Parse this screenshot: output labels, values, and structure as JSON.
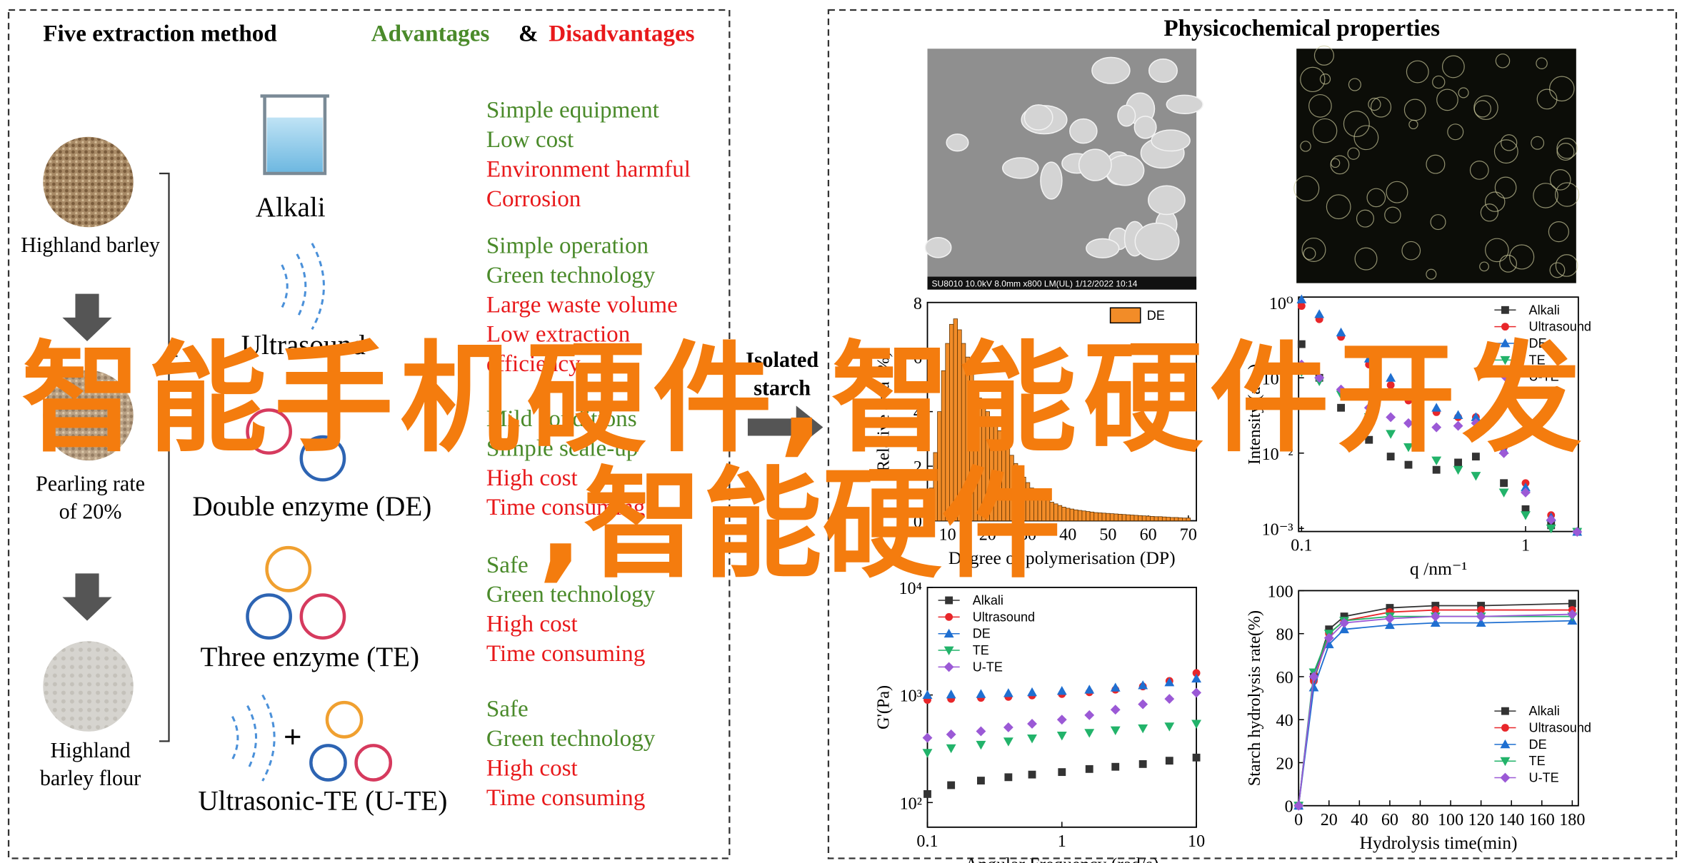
{
  "left_panel": {
    "title": "Five extraction method",
    "advantages": "Advantages",
    "ampersand": "&",
    "disadvantages": "Disadvantages",
    "steps": [
      [
        "Highland barley"
      ],
      [
        "Pearling rate",
        "of 20%"
      ],
      [
        "Highland",
        "barley flour"
      ]
    ],
    "methods": [
      {
        "name": "Alkali",
        "pros": [
          "Simple equipment",
          "Low cost"
        ],
        "cons": [
          "Environment harmful",
          "Corrosion"
        ]
      },
      {
        "name": "Ultrasound",
        "pros": [
          "Simple operation",
          "Green technology"
        ],
        "cons": [
          "Large waste volume",
          "Low extraction",
          "efficiency"
        ]
      },
      {
        "name": "Double enzyme (DE)",
        "pros": [
          "Mild conditions",
          "Simple scale-up"
        ],
        "cons": [
          "High cost",
          "Time consuming"
        ]
      },
      {
        "name": "Three enzyme (TE)",
        "pros": [
          "Safe",
          "Green technology"
        ],
        "cons": [
          "High cost",
          "Time consuming"
        ]
      },
      {
        "name": "Ultrasonic-TE (U-TE)",
        "pros": [
          "Safe",
          "Green technology"
        ],
        "cons": [
          "High cost",
          "Time consuming"
        ]
      }
    ]
  },
  "right_panel": {
    "title": "Physicochemical properties",
    "isolated_starch": [
      "Isolated",
      "starch"
    ],
    "sem_caption": "SU8010 10.0kV 8.0mm x800 LM(UL) 1/12/2022 10:14",
    "charts": [
      {
        "type": "histogram",
        "xlabel": "Degree of polymerisation (DP)",
        "ylabel": "Relative area (%)",
        "xlim": [
          5,
          72
        ],
        "ylim": [
          0,
          8
        ],
        "xticks": [
          10,
          20,
          30,
          40,
          50,
          60,
          70
        ],
        "yticks": [
          0,
          2,
          4,
          6,
          8
        ],
        "legend": "top-right",
        "bins": [
          5.5,
          6.5,
          7.5,
          8.5,
          9.5,
          10.5,
          11.5,
          12.5,
          13.5,
          14.5,
          15.5,
          16.5,
          17.5,
          18.5,
          19.5,
          20.5,
          21.5,
          22.5,
          23.5,
          24.5,
          25.5,
          26.5,
          27.5,
          28.5,
          29.5,
          30.5,
          31.5,
          32.5,
          33.5,
          34.5,
          35.5,
          36.5,
          37.5,
          38.5,
          39.5,
          40.5,
          41.5,
          42.5,
          43.5,
          44.5,
          45.5,
          46.5,
          47.5,
          48.5,
          49.5,
          50.5,
          51.5,
          52.5,
          53.5,
          54.5,
          55.5,
          56.5,
          57.5,
          58.5,
          59.5,
          60.5,
          61.5,
          62.5,
          63.5,
          64.5,
          65.5,
          66.5,
          67.5,
          68.5,
          69.5,
          70.5
        ],
        "series": [
          {
            "name": "DE",
            "color": "#f28c28",
            "values": [
              1.2,
              2.5,
              4.0,
              5.5,
              6.5,
              7.2,
              7.4,
              7.0,
              6.5,
              6.0,
              5.5,
              5.0,
              4.5,
              4.2,
              4.0,
              3.8,
              3.6,
              3.3,
              3.0,
              2.7,
              2.4,
              2.1,
              1.8,
              1.6,
              1.4,
              1.2,
              1.05,
              0.95,
              0.85,
              0.75,
              0.68,
              0.62,
              0.56,
              0.5,
              0.46,
              0.43,
              0.4,
              0.38,
              0.36,
              0.34,
              0.32,
              0.3,
              0.29,
              0.28,
              0.27,
              0.26,
              0.25,
              0.24,
              0.23,
              0.22,
              0.21,
              0.2,
              0.19,
              0.18,
              0.17,
              0.16,
              0.15,
              0.15,
              0.14,
              0.13,
              0.12,
              0.12,
              0.11,
              0.1,
              0.1
            ]
          }
        ]
      },
      {
        "type": "scatter",
        "xlog": true,
        "ylog": true,
        "xlabel": "q /nm⁻¹",
        "ylabel": "Intensity (a.u.)",
        "xlim": [
          0.097,
          1.72
        ],
        "ylim": [
          0.00091,
          1.18
        ],
        "xticks": [
          0.1,
          1
        ],
        "yticks": [
          {
            "value": 0.001,
            "label": "10⁻³"
          },
          {
            "value": 0.01,
            "label": "10⁻²"
          },
          {
            "value": 0.1,
            "label": "10⁻¹"
          },
          {
            "value": 1,
            "label": "10⁰"
          }
        ],
        "legend": "top-right",
        "x": [
          0.1,
          0.12,
          0.15,
          0.2,
          0.25,
          0.3,
          0.4,
          0.5,
          0.6,
          0.8,
          1.0,
          1.3,
          1.7
        ],
        "series": [
          {
            "name": "Alkali",
            "color": "#333333",
            "marker": "square",
            "values": [
              0.28,
              0.1,
              0.04,
              0.015,
              0.009,
              0.007,
              0.006,
              0.0075,
              0.009,
              0.004,
              0.0018,
              0.0011,
              0.0009
            ]
          },
          {
            "name": "Ultrasound",
            "color": "#e8262a",
            "marker": "circle",
            "values": [
              0.9,
              0.6,
              0.35,
              0.15,
              0.08,
              0.05,
              0.035,
              0.03,
              0.03,
              0.012,
              0.004,
              0.0015,
              0.0009
            ]
          },
          {
            "name": "DE",
            "color": "#1f6fd1",
            "marker": "up",
            "values": [
              1.1,
              0.7,
              0.4,
              0.18,
              0.1,
              0.06,
              0.04,
              0.032,
              0.03,
              0.011,
              0.0035,
              0.0014,
              0.0009
            ]
          },
          {
            "name": "TE",
            "color": "#22b36a",
            "marker": "down",
            "values": [
              0.12,
              0.09,
              0.06,
              0.03,
              0.018,
              0.012,
              0.008,
              0.006,
              0.005,
              0.003,
              0.0015,
              0.001,
              0.0009
            ]
          },
          {
            "name": "U-TE",
            "color": "#9b59d6",
            "marker": "diamond",
            "values": [
              0.15,
              0.1,
              0.07,
              0.04,
              0.03,
              0.025,
              0.022,
              0.023,
              0.025,
              0.01,
              0.003,
              0.0013,
              0.0009
            ]
          }
        ]
      },
      {
        "type": "scatter",
        "xlog": true,
        "ylog": true,
        "xlabel": "Angular Frequency (rad/s)",
        "ylabel": "G'(Pa)",
        "xlim": [
          0.1,
          10
        ],
        "ylim": [
          59,
          10000
        ],
        "xticks": [
          0.1,
          1,
          10
        ],
        "yticks": [
          {
            "value": 100,
            "label": "10²"
          },
          {
            "value": 1000,
            "label": "10³"
          },
          {
            "value": 10000,
            "label": "10⁴"
          }
        ],
        "legend": "top-left",
        "x": [
          0.1,
          0.15,
          0.25,
          0.4,
          0.6,
          1,
          1.6,
          2.5,
          4,
          6.3,
          10
        ],
        "series": [
          {
            "name": "Alkali",
            "color": "#333333",
            "marker": "square",
            "values": [
              120,
              145,
              160,
              172,
              182,
              192,
              205,
              215,
              228,
              245,
              262
            ]
          },
          {
            "name": "Ultrasound",
            "color": "#e8262a",
            "marker": "circle",
            "values": [
              900,
              920,
              940,
              960,
              990,
              1020,
              1060,
              1120,
              1200,
              1350,
              1600
            ]
          },
          {
            "name": "DE",
            "color": "#1f6fd1",
            "marker": "up",
            "values": [
              1000,
              1010,
              1020,
              1040,
              1060,
              1090,
              1120,
              1170,
              1230,
              1310,
              1420
            ]
          },
          {
            "name": "TE",
            "color": "#22b36a",
            "marker": "down",
            "values": [
              290,
              320,
              345,
              370,
              395,
              420,
              445,
              470,
              490,
              510,
              540
            ]
          },
          {
            "name": "U-TE",
            "color": "#9b59d6",
            "marker": "diamond",
            "values": [
              400,
              430,
              460,
              500,
              540,
              590,
              650,
              730,
              820,
              920,
              1050
            ]
          }
        ]
      },
      {
        "type": "scatter",
        "lines": true,
        "xlabel": "Hydrolysis time(min)",
        "ylabel": "Starch hydrolysis rate(%)",
        "xlim": [
          0,
          184
        ],
        "ylim": [
          0,
          100
        ],
        "xticks": [
          0,
          20,
          40,
          60,
          80,
          100,
          120,
          140,
          160,
          180
        ],
        "yticks": [
          0,
          20,
          40,
          60,
          80,
          100
        ],
        "legend": "bottom-right",
        "x": [
          0,
          10,
          20,
          30,
          60,
          90,
          120,
          180
        ],
        "series": [
          {
            "name": "Alkali",
            "color": "#333333",
            "marker": "square",
            "values": [
              0,
              60,
              82,
              88,
              92,
              93,
              93,
              94
            ]
          },
          {
            "name": "Ultrasound",
            "color": "#e8262a",
            "marker": "circle",
            "values": [
              0,
              58,
              80,
              86,
              90,
              91,
              91,
              91
            ]
          },
          {
            "name": "DE",
            "color": "#1f6fd1",
            "marker": "up",
            "values": [
              0,
              55,
              75,
              82,
              84,
              85,
              85,
              86
            ]
          },
          {
            "name": "TE",
            "color": "#22b36a",
            "marker": "down",
            "values": [
              0,
              62,
              80,
              86,
              88,
              88,
              88,
              88
            ]
          },
          {
            "name": "U-TE",
            "color": "#9b59d6",
            "marker": "diamond",
            "values": [
              0,
              60,
              78,
              85,
              87,
              88,
              88,
              89
            ]
          }
        ]
      }
    ]
  },
  "overlay": [
    "智能手机硬件,智能硬件开发",
    ",智能硬件"
  ]
}
